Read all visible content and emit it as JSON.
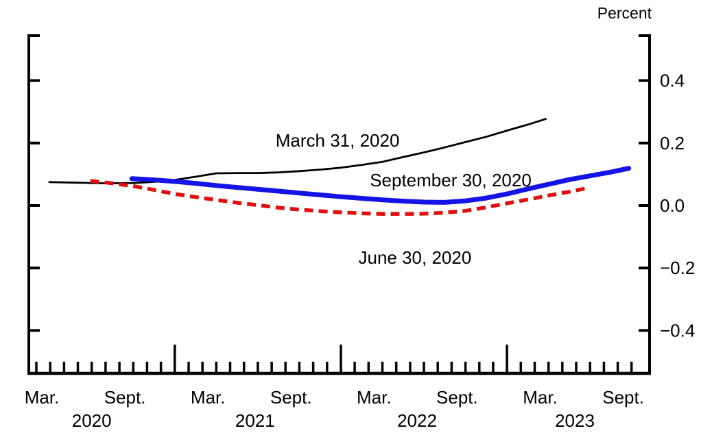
{
  "header": {
    "unit_label": "Percent"
  },
  "chart_data": {
    "type": "line",
    "title": "",
    "ylabel": "Percent",
    "ylim": [
      -0.55,
      0.55
    ],
    "grid": false,
    "legend": "inline-annotations",
    "x_axis": {
      "description": "monthly ticks, x in months after March 2020; tall ticks mark January",
      "months_range": [
        0,
        43
      ],
      "tick_labels": [
        {
          "m": 0,
          "label": "Mar."
        },
        {
          "m": 6,
          "label": "Sept."
        },
        {
          "m": 12,
          "label": "Mar."
        },
        {
          "m": 18,
          "label": "Sept."
        },
        {
          "m": 24,
          "label": "Mar."
        },
        {
          "m": 30,
          "label": "Sept."
        },
        {
          "m": 36,
          "label": "Mar."
        },
        {
          "m": 42,
          "label": "Sept."
        }
      ],
      "year_labels": [
        {
          "m": 4.0,
          "label": "2020"
        },
        {
          "m": 15.8,
          "label": "2021"
        },
        {
          "m": 27.5,
          "label": "2022"
        },
        {
          "m": 38.9,
          "label": "2023"
        }
      ]
    },
    "y_axis": {
      "unit": "Percent",
      "side": "right",
      "ticks": [
        {
          "v": 0.4,
          "label": "0.4"
        },
        {
          "v": 0.2,
          "label": "0.2"
        },
        {
          "v": 0.0,
          "label": "0.0"
        },
        {
          "v": -0.2,
          "label": "−0.2"
        },
        {
          "v": -0.4,
          "label": "−0.4"
        }
      ]
    },
    "series": [
      {
        "name": "March 31, 2020",
        "color": "#000000",
        "style": "solid-thin",
        "points_x_months_after_2020_03_y_percent": [
          [
            0.94,
            0.075
          ],
          [
            3,
            0.073
          ],
          [
            5,
            0.071
          ],
          [
            7,
            0.072
          ],
          [
            9,
            0.077
          ],
          [
            10,
            0.082
          ],
          [
            11.5,
            0.092
          ],
          [
            13,
            0.103
          ],
          [
            14.5,
            0.104
          ],
          [
            16,
            0.104
          ],
          [
            17.5,
            0.106
          ],
          [
            19,
            0.11
          ],
          [
            20.5,
            0.115
          ],
          [
            22,
            0.121
          ],
          [
            23.5,
            0.13
          ],
          [
            25,
            0.14
          ],
          [
            26.5,
            0.155
          ],
          [
            28,
            0.17
          ],
          [
            29.5,
            0.186
          ],
          [
            31,
            0.203
          ],
          [
            32.5,
            0.22
          ],
          [
            34,
            0.24
          ],
          [
            35.5,
            0.259
          ],
          [
            36.8,
            0.277
          ]
        ]
      },
      {
        "name": "June 30, 2020",
        "color": "#e00e0e",
        "style": "dashed",
        "points_x_months_after_2020_03_y_percent": [
          [
            3.9,
            0.079
          ],
          [
            5.5,
            0.071
          ],
          [
            7,
            0.062
          ],
          [
            8.5,
            0.05
          ],
          [
            10,
            0.037
          ],
          [
            11.5,
            0.027
          ],
          [
            13,
            0.018
          ],
          [
            14.5,
            0.009
          ],
          [
            16,
            0.001
          ],
          [
            17.5,
            -0.007
          ],
          [
            19,
            -0.013
          ],
          [
            20.5,
            -0.018
          ],
          [
            22,
            -0.022
          ],
          [
            23.5,
            -0.025
          ],
          [
            25,
            -0.027
          ],
          [
            26.5,
            -0.027
          ],
          [
            28,
            -0.026
          ],
          [
            29.5,
            -0.023
          ],
          [
            31,
            -0.017
          ],
          [
            32.5,
            -0.006
          ],
          [
            34,
            0.007
          ],
          [
            35.5,
            0.019
          ],
          [
            37,
            0.032
          ],
          [
            38.5,
            0.044
          ],
          [
            39.7,
            0.055
          ]
        ]
      },
      {
        "name": "September 30, 2020",
        "color": "#1414e6",
        "style": "solid-thick",
        "points_x_months_after_2020_03_y_percent": [
          [
            6.9,
            0.086
          ],
          [
            8.5,
            0.082
          ],
          [
            10,
            0.077
          ],
          [
            11.5,
            0.071
          ],
          [
            13,
            0.064
          ],
          [
            14.5,
            0.058
          ],
          [
            16,
            0.052
          ],
          [
            17.5,
            0.046
          ],
          [
            19,
            0.04
          ],
          [
            20.5,
            0.034
          ],
          [
            22,
            0.028
          ],
          [
            23.5,
            0.023
          ],
          [
            25,
            0.018
          ],
          [
            26.5,
            0.014
          ],
          [
            28,
            0.011
          ],
          [
            29.5,
            0.01
          ],
          [
            31,
            0.015
          ],
          [
            32.5,
            0.024
          ],
          [
            34,
            0.037
          ],
          [
            35.5,
            0.053
          ],
          [
            37,
            0.068
          ],
          [
            38.5,
            0.083
          ],
          [
            40,
            0.095
          ],
          [
            41.5,
            0.107
          ],
          [
            42.8,
            0.119
          ]
        ]
      }
    ],
    "annotations": [
      {
        "text": "March 31, 2020",
        "color": "#000000",
        "m": 21.76,
        "v": 0.208
      },
      {
        "text": "September 30, 2020",
        "color": "#1414e6",
        "m": 29.93,
        "v": 0.081
      },
      {
        "text": "June 30, 2020",
        "color": "#e00e0e",
        "m": 27.35,
        "v": -0.167
      }
    ]
  }
}
